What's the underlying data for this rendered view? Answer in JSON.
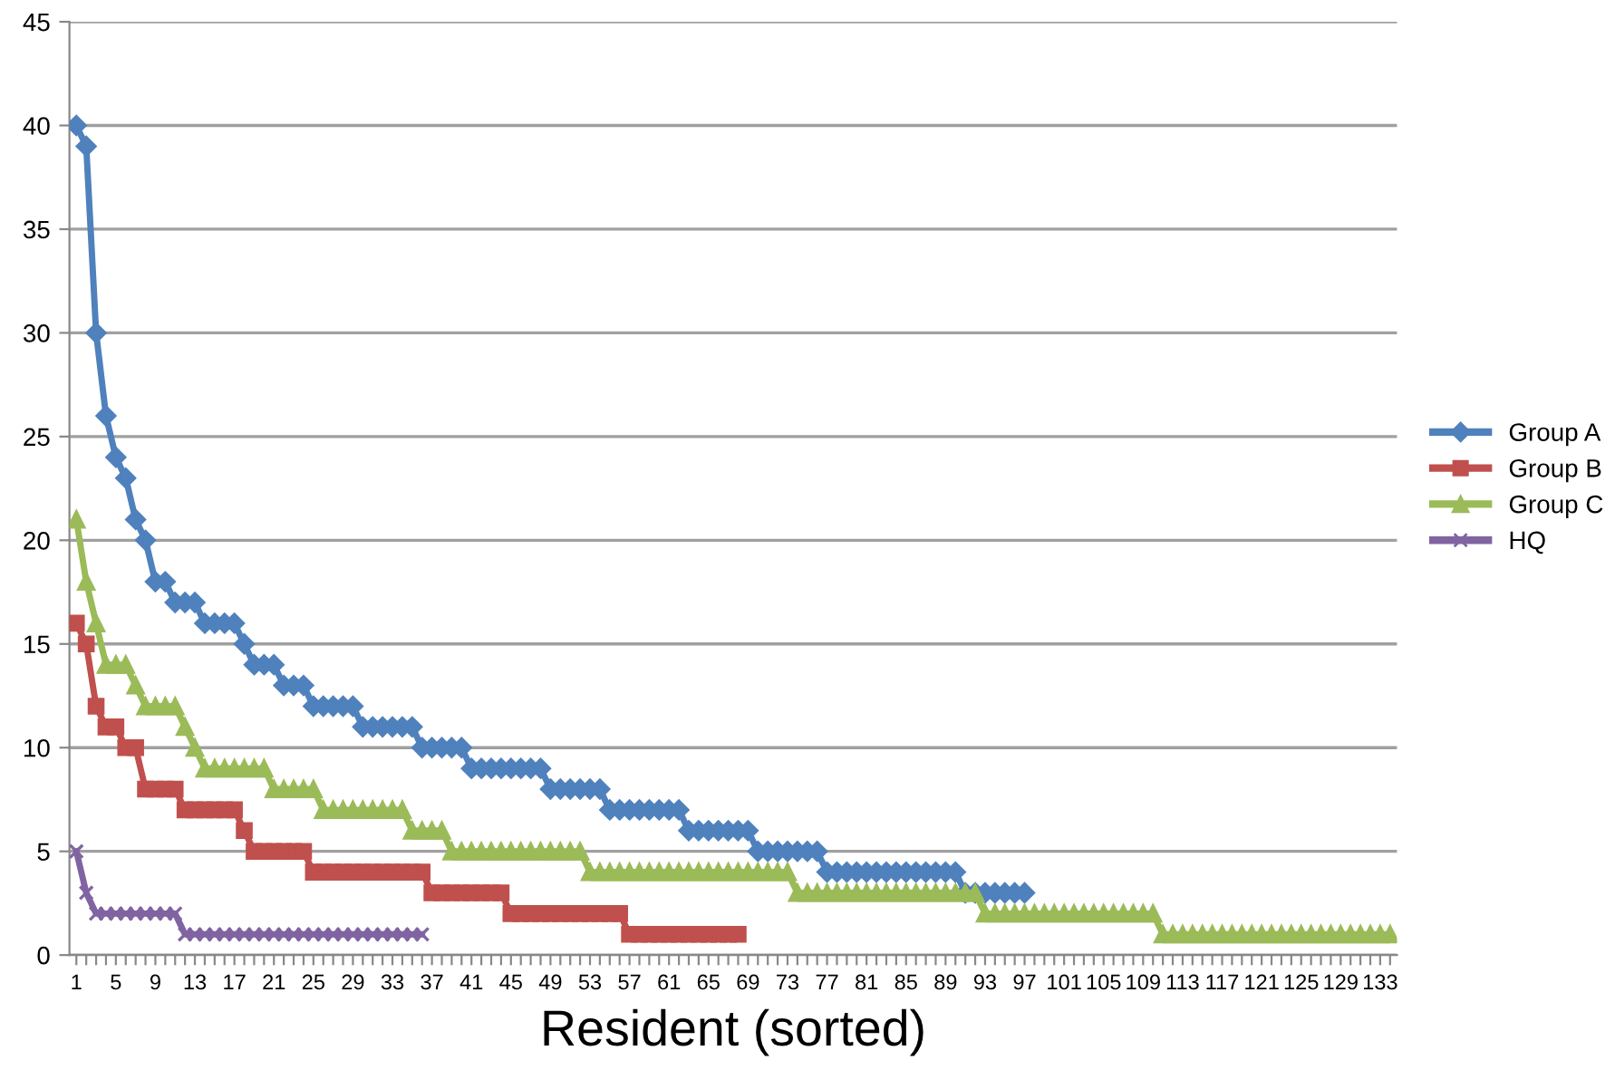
{
  "chart_data": {
    "type": "line",
    "xlabel": "Resident (sorted)",
    "categories": [
      "1",
      null,
      null,
      null,
      "5",
      null,
      null,
      null,
      "9",
      null,
      null,
      null,
      "13",
      null,
      null,
      null,
      "17",
      null,
      null,
      null,
      "21",
      null,
      null,
      null,
      "25",
      null,
      null,
      null,
      "29",
      null,
      null,
      null,
      "33",
      null,
      null,
      null,
      "37",
      null,
      null,
      null,
      "41",
      null,
      null,
      null,
      "45",
      null,
      null,
      null,
      "49",
      null,
      null,
      null,
      "53",
      null,
      null,
      null,
      "57",
      null,
      null,
      null,
      "61",
      null,
      null,
      null,
      "65",
      null,
      null,
      null,
      "69",
      null,
      null,
      null,
      "73",
      null,
      null,
      null,
      "77",
      null,
      null,
      null,
      "81",
      null,
      null,
      null,
      "85",
      null,
      null,
      null,
      "89",
      null,
      null,
      null,
      "93",
      null,
      null,
      null,
      "97",
      null,
      null,
      null,
      "101",
      null,
      null,
      null,
      "105",
      null,
      null,
      null,
      "109",
      null,
      null,
      null,
      "113",
      null,
      null,
      null,
      "117",
      null,
      null,
      null,
      "121",
      null,
      null,
      null,
      "125",
      null,
      null,
      null,
      "129",
      null,
      null,
      null,
      "133",
      null
    ],
    "series": [
      {
        "name": "Group A",
        "color": "#4f81bd",
        "marker": "diamond",
        "values": [
          40,
          39,
          30,
          26,
          24,
          23,
          21,
          20,
          18,
          18,
          17,
          17,
          17,
          16,
          16,
          16,
          16,
          15,
          14,
          14,
          14,
          13,
          13,
          13,
          12,
          12,
          12,
          12,
          12,
          11,
          11,
          11,
          11,
          11,
          11,
          10,
          10,
          10,
          10,
          10,
          9,
          9,
          9,
          9,
          9,
          9,
          9,
          9,
          8,
          8,
          8,
          8,
          8,
          8,
          7,
          7,
          7,
          7,
          7,
          7,
          7,
          7,
          6,
          6,
          6,
          6,
          6,
          6,
          6,
          5,
          5,
          5,
          5,
          5,
          5,
          5,
          4,
          4,
          4,
          4,
          4,
          4,
          4,
          4,
          4,
          4,
          4,
          4,
          4,
          4,
          3,
          3,
          3,
          3,
          3,
          3,
          3,
          null,
          null,
          null,
          null,
          null,
          null,
          null,
          null,
          null,
          null,
          null,
          null,
          null,
          null,
          null,
          null,
          null,
          null,
          null,
          null,
          null,
          null,
          null,
          null,
          null,
          null,
          null,
          null,
          null,
          null,
          null,
          null,
          null,
          null,
          null,
          null,
          null
        ]
      },
      {
        "name": "Group B",
        "color": "#c0504d",
        "marker": "square",
        "values": [
          16,
          15,
          12,
          11,
          11,
          10,
          10,
          8,
          8,
          8,
          8,
          7,
          7,
          7,
          7,
          7,
          7,
          6,
          5,
          5,
          5,
          5,
          5,
          5,
          4,
          4,
          4,
          4,
          4,
          4,
          4,
          4,
          4,
          4,
          4,
          4,
          3,
          3,
          3,
          3,
          3,
          3,
          3,
          3,
          2,
          2,
          2,
          2,
          2,
          2,
          2,
          2,
          2,
          2,
          2,
          2,
          1,
          1,
          1,
          1,
          1,
          1,
          1,
          1,
          1,
          1,
          1,
          1,
          null,
          null,
          null,
          null,
          null,
          null,
          null,
          null,
          null,
          null,
          null,
          null,
          null,
          null,
          null,
          null,
          null,
          null,
          null,
          null,
          null,
          null,
          null,
          null,
          null,
          null,
          null,
          null,
          null,
          null,
          null,
          null,
          null,
          null,
          null,
          null,
          null,
          null,
          null,
          null,
          null,
          null,
          null,
          null,
          null,
          null,
          null,
          null,
          null,
          null,
          null,
          null,
          null,
          null,
          null,
          null,
          null,
          null,
          null,
          null,
          null,
          null,
          null,
          null,
          null,
          null
        ]
      },
      {
        "name": "Group C",
        "color": "#9bbb59",
        "marker": "triangle",
        "values": [
          21,
          18,
          16,
          14,
          14,
          14,
          13,
          12,
          12,
          12,
          12,
          11,
          10,
          9,
          9,
          9,
          9,
          9,
          9,
          9,
          8,
          8,
          8,
          8,
          8,
          7,
          7,
          7,
          7,
          7,
          7,
          7,
          7,
          7,
          6,
          6,
          6,
          6,
          5,
          5,
          5,
          5,
          5,
          5,
          5,
          5,
          5,
          5,
          5,
          5,
          5,
          5,
          4,
          4,
          4,
          4,
          4,
          4,
          4,
          4,
          4,
          4,
          4,
          4,
          4,
          4,
          4,
          4,
          4,
          4,
          4,
          4,
          4,
          3,
          3,
          3,
          3,
          3,
          3,
          3,
          3,
          3,
          3,
          3,
          3,
          3,
          3,
          3,
          3,
          3,
          3,
          3,
          2,
          2,
          2,
          2,
          2,
          2,
          2,
          2,
          2,
          2,
          2,
          2,
          2,
          2,
          2,
          2,
          2,
          2,
          1,
          1,
          1,
          1,
          1,
          1,
          1,
          1,
          1,
          1,
          1,
          1,
          1,
          1,
          1,
          1,
          1,
          1,
          1,
          1,
          1,
          1,
          1,
          1
        ]
      },
      {
        "name": "HQ",
        "color": "#8064a2",
        "marker": "cross",
        "values": [
          5,
          3,
          2,
          2,
          2,
          2,
          2,
          2,
          2,
          2,
          2,
          1,
          1,
          1,
          1,
          1,
          1,
          1,
          1,
          1,
          1,
          1,
          1,
          1,
          1,
          1,
          1,
          1,
          1,
          1,
          1,
          1,
          1,
          1,
          1,
          1,
          null,
          null,
          null,
          null,
          null,
          null,
          null,
          null,
          null,
          null,
          null,
          null,
          null,
          null,
          null,
          null,
          null,
          null,
          null,
          null,
          null,
          null,
          null,
          null,
          null,
          null,
          null,
          null,
          null,
          null,
          null,
          null,
          null,
          null,
          null,
          null,
          null,
          null,
          null,
          null,
          null,
          null,
          null,
          null,
          null,
          null,
          null,
          null,
          null,
          null,
          null,
          null,
          null,
          null,
          null,
          null,
          null,
          null,
          null,
          null,
          null,
          null,
          null,
          null,
          null,
          null,
          null,
          null,
          null,
          null,
          null,
          null,
          null,
          null,
          null,
          null,
          null,
          null,
          null,
          null,
          null,
          null,
          null,
          null,
          null,
          null,
          null,
          null,
          null,
          null,
          null,
          null,
          null,
          null,
          null,
          null,
          null,
          null
        ]
      }
    ],
    "ylim": [
      0,
      45
    ],
    "yticks": [
      0,
      5,
      10,
      15,
      20,
      25,
      30,
      35,
      40,
      45
    ],
    "grid": "y",
    "legend": "right",
    "line_style": "solid"
  }
}
